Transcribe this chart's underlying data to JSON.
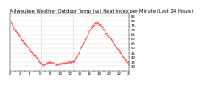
{
  "title": "Milwaukee Weather Outdoor Temp (vs) Heat Index per Minute (Last 24 Hours)",
  "line_color": "#ff0000",
  "background_color": "#ffffff",
  "grid_color": "#c8c8c8",
  "vline_color": "#888888",
  "ylim": [
    25,
    88
  ],
  "yticks": [
    30,
    35,
    40,
    45,
    50,
    55,
    60,
    65,
    70,
    75,
    80,
    85
  ],
  "vline_positions": [
    0.265,
    0.53
  ],
  "num_points": 1440,
  "title_fontsize": 3.8,
  "tick_fontsize": 2.8
}
